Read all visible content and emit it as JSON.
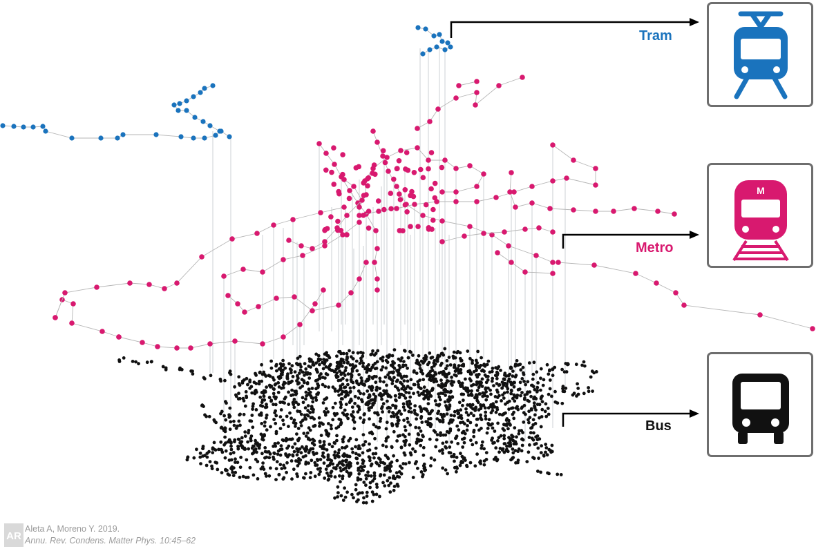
{
  "layers": [
    {
      "name": "Tram",
      "color": "#1a73bd"
    },
    {
      "name": "Metro",
      "color": "#d8196f"
    },
    {
      "name": "Bus",
      "color": "#111111"
    }
  ],
  "icons": {
    "tram": "tram-icon",
    "metro": "metro-icon",
    "bus": "bus-icon",
    "metro_badge": "M"
  },
  "credit": {
    "logo_text": "AR",
    "authors": "Aleta A, Moreno Y. 2019.",
    "citation": "Annu. Rev. Condens. Matter Phys. 10:45–62"
  }
}
